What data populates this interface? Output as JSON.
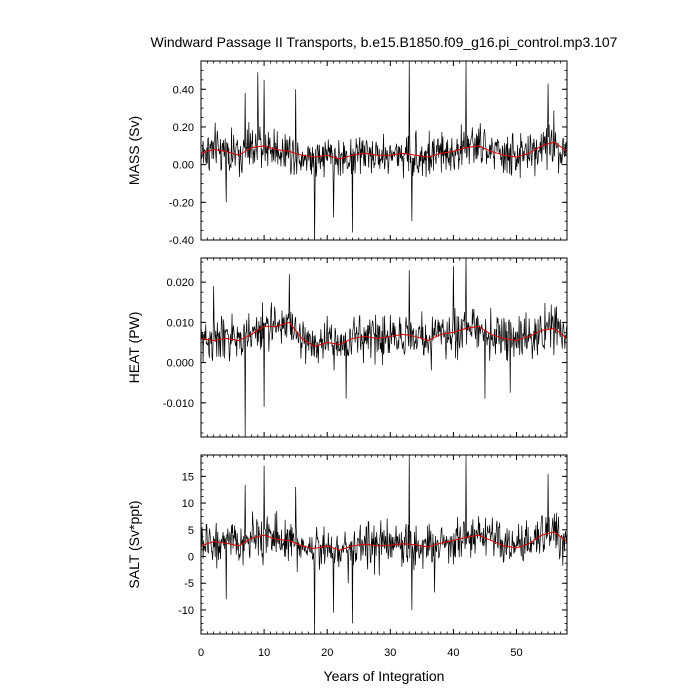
{
  "title": "Windward Passage II Transports, b.e15.B1850.f09_g16.pi_control.mp3.107",
  "xlabel": "Years of Integration",
  "colors": {
    "raw": "#000000",
    "smooth": "#e00000",
    "frame": "#000000"
  },
  "chart_data": [
    {
      "type": "line",
      "ylabel": "MASS (Sv)",
      "xlim": [
        0,
        58
      ],
      "ylim": [
        -0.4,
        0.55
      ],
      "yticks": [
        -0.4,
        -0.2,
        0.0,
        0.2,
        0.4
      ],
      "ytick_labels": [
        "-0.40",
        "-0.20",
        "0.00",
        "0.20",
        "0.40"
      ],
      "xticks": [
        0,
        10,
        20,
        30,
        40,
        50
      ],
      "xtick_labels": [
        "0",
        "10",
        "20",
        "30",
        "40",
        "50"
      ],
      "show_xticklabels": false,
      "smooth": {
        "x": [
          0,
          2,
          4,
          6,
          8,
          10,
          12,
          14,
          16,
          18,
          20,
          22,
          24,
          26,
          28,
          30,
          32,
          34,
          36,
          38,
          40,
          42,
          44,
          46,
          48,
          50,
          52,
          54,
          56,
          58
        ],
        "y": [
          0.06,
          0.08,
          0.07,
          0.05,
          0.09,
          0.1,
          0.08,
          0.07,
          0.05,
          0.04,
          0.05,
          0.03,
          0.05,
          0.06,
          0.05,
          0.05,
          0.06,
          0.05,
          0.04,
          0.06,
          0.07,
          0.09,
          0.1,
          0.07,
          0.05,
          0.04,
          0.06,
          0.1,
          0.12,
          0.07
        ]
      },
      "raw": {
        "spikes": [
          [
            7,
            0.38
          ],
          [
            9,
            0.49
          ],
          [
            10,
            0.45
          ],
          [
            15,
            0.4
          ],
          [
            18,
            -0.42
          ],
          [
            21,
            -0.28
          ],
          [
            24,
            -0.36
          ],
          [
            33,
            0.54
          ],
          [
            33.4,
            -0.3
          ],
          [
            42,
            0.54
          ],
          [
            55,
            0.43
          ],
          [
            4,
            -0.2
          ]
        ]
      }
    },
    {
      "type": "line",
      "ylabel": "HEAT (PW)",
      "xlim": [
        0,
        58
      ],
      "ylim": [
        -0.0185,
        0.026
      ],
      "yticks": [
        -0.01,
        0.0,
        0.01,
        0.02
      ],
      "ytick_labels": [
        "-0.010",
        "0.000",
        "0.010",
        "0.020"
      ],
      "xticks": [
        0,
        10,
        20,
        30,
        40,
        50
      ],
      "xtick_labels": [
        "0",
        "10",
        "20",
        "30",
        "40",
        "50"
      ],
      "show_xticklabels": false,
      "smooth": {
        "x": [
          0,
          2,
          4,
          6,
          8,
          10,
          12,
          14,
          16,
          18,
          20,
          22,
          24,
          26,
          28,
          30,
          32,
          34,
          36,
          38,
          40,
          42,
          44,
          46,
          48,
          50,
          52,
          54,
          56,
          58
        ],
        "y": [
          0.006,
          0.0055,
          0.006,
          0.0055,
          0.007,
          0.009,
          0.009,
          0.01,
          0.006,
          0.004,
          0.005,
          0.0045,
          0.006,
          0.0065,
          0.006,
          0.0065,
          0.007,
          0.0065,
          0.0055,
          0.007,
          0.0075,
          0.0085,
          0.009,
          0.007,
          0.006,
          0.0055,
          0.0065,
          0.008,
          0.0085,
          0.006
        ]
      },
      "raw": {
        "spikes": [
          [
            2,
            0.019
          ],
          [
            7,
            -0.018
          ],
          [
            10,
            -0.011
          ],
          [
            14,
            0.022
          ],
          [
            23,
            -0.009
          ],
          [
            33,
            0.023
          ],
          [
            40,
            0.024
          ],
          [
            42,
            0.026
          ],
          [
            45,
            -0.009
          ],
          [
            49,
            -0.0075
          ]
        ]
      }
    },
    {
      "type": "line",
      "ylabel": "SALT (Sv*ppt)",
      "xlim": [
        0,
        58
      ],
      "ylim": [
        -14.5,
        19
      ],
      "yticks": [
        -10,
        -5,
        0,
        5,
        10,
        15
      ],
      "ytick_labels": [
        "-10",
        "-5",
        "0",
        "5",
        "10",
        "15"
      ],
      "xticks": [
        0,
        10,
        20,
        30,
        40,
        50
      ],
      "xtick_labels": [
        "0",
        "10",
        "20",
        "30",
        "40",
        "50"
      ],
      "show_xticklabels": true,
      "smooth": {
        "x": [
          0,
          2,
          4,
          6,
          8,
          10,
          12,
          14,
          16,
          18,
          20,
          22,
          24,
          26,
          28,
          30,
          32,
          34,
          36,
          38,
          40,
          42,
          44,
          46,
          48,
          50,
          52,
          54,
          56,
          58
        ],
        "y": [
          2.0,
          2.8,
          2.5,
          2.0,
          3.4,
          4.0,
          3.2,
          3.0,
          2.0,
          1.5,
          2.0,
          1.2,
          2.0,
          2.3,
          2.0,
          2.1,
          2.4,
          2.2,
          1.8,
          2.5,
          3.0,
          3.6,
          4.0,
          3.0,
          2.0,
          1.6,
          2.4,
          4.0,
          4.6,
          2.8
        ]
      },
      "raw": {
        "spikes": [
          [
            7,
            13.4
          ],
          [
            10,
            17.0
          ],
          [
            12,
            8.5
          ],
          [
            15,
            13.0
          ],
          [
            18,
            -14.5
          ],
          [
            21,
            -10.5
          ],
          [
            24,
            -12.5
          ],
          [
            33,
            18.5
          ],
          [
            33.4,
            -10.0
          ],
          [
            42,
            18.5
          ],
          [
            55,
            15.5
          ],
          [
            4,
            -8.0
          ],
          [
            37,
            -6.7
          ]
        ]
      }
    }
  ]
}
